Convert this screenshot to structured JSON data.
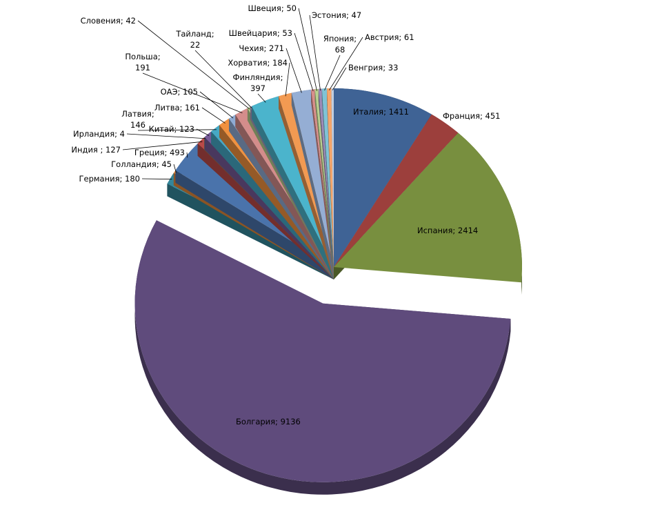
{
  "chart_data": {
    "type": "pie3d",
    "values": [
      1411,
      451,
      2414,
      9136,
      180,
      45,
      493,
      127,
      4,
      123,
      146,
      161,
      105,
      191,
      42,
      22,
      397,
      184,
      271,
      53,
      50,
      47,
      68,
      61,
      33
    ],
    "value_labels": [
      "Италия; 1411",
      "Франция; 451",
      "Испания; 2414",
      "Болгария; 9136",
      "Германия; 180",
      "Голландия; 45",
      "Греция; 493",
      "Индия ; 127",
      "Ирландия; 4",
      "Китай; 123",
      "Латвия;\n146",
      "Литва; 161",
      "ОАЭ; 105",
      "Польша;\n191",
      "Словения; 42",
      "Тайланд;\n22",
      "Финляндия;\n397",
      "Хорватия; 184",
      "Чехия; 271",
      "Швейцария; 53",
      "Швеция;  50",
      "Эстония; 47",
      "Япония;\n68",
      "Австрия; 61",
      "Венгрия; 33"
    ],
    "colors": [
      "#3f6395",
      "#9c3f3c",
      "#788f3f",
      "#5f4b7c",
      "#34869a",
      "#e0873a",
      "#4a73ab",
      "#b94a48",
      "#8fad52",
      "#765a98",
      "#46a8c4",
      "#f0913f",
      "#8fabd3",
      "#d48d8b",
      "#b7cf8d",
      "#a898c2",
      "#4bb4cc",
      "#f29a52",
      "#95aed4",
      "#d98f8c",
      "#b9d18f",
      "#9d8ab8",
      "#7fc3d6",
      "#f5a56a",
      "#c0cde0"
    ],
    "exploded": [
      false,
      false,
      false,
      true,
      false,
      false,
      false,
      false,
      false,
      false,
      false,
      false,
      false,
      false,
      false,
      false,
      false,
      false,
      false,
      false,
      false,
      false,
      false,
      false,
      false
    ]
  }
}
